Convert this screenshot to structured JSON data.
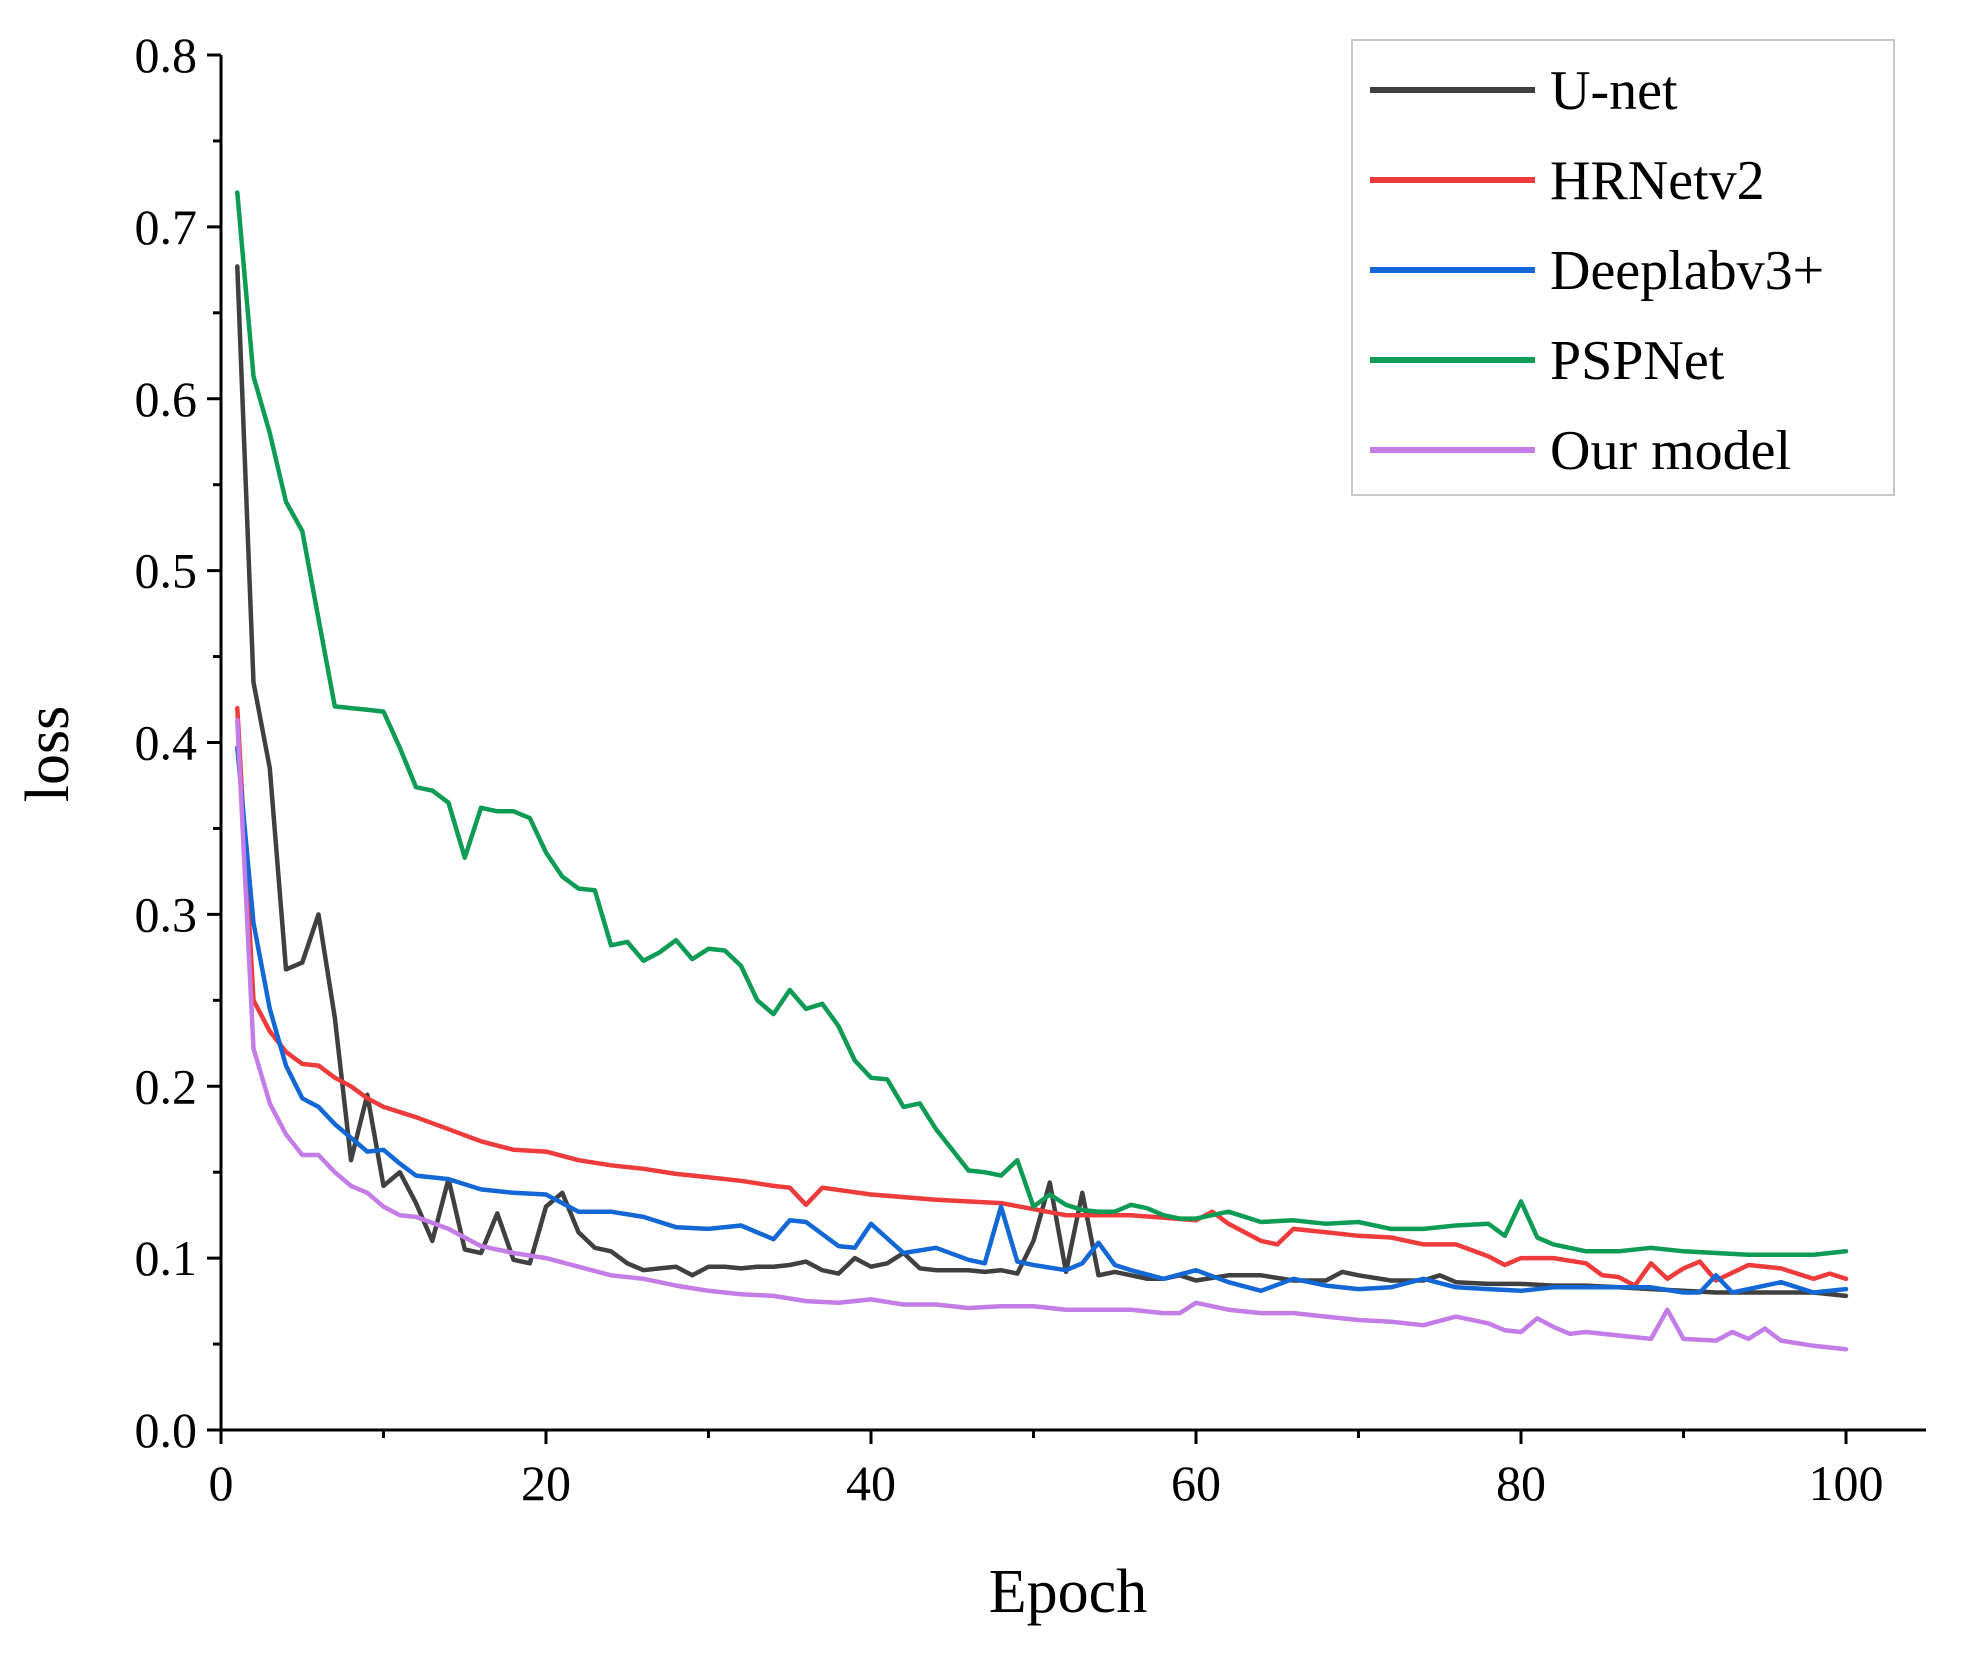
{
  "chart_data": {
    "type": "line",
    "title": "",
    "xlabel": "Epoch",
    "ylabel": "loss",
    "xlim": [
      0,
      105
    ],
    "ylim": [
      0,
      0.8
    ],
    "xticks": [
      0,
      20,
      40,
      60,
      80,
      100
    ],
    "yticks": [
      0.0,
      0.1,
      0.2,
      0.3,
      0.4,
      0.5,
      0.6,
      0.7,
      0.8
    ],
    "xtick_labels": [
      "0",
      "20",
      "40",
      "60",
      "80",
      "100"
    ],
    "ytick_labels": [
      "0.0",
      "0.1",
      "0.2",
      "0.3",
      "0.4",
      "0.5",
      "0.6",
      "0.7",
      "0.8"
    ],
    "grid": false,
    "legend_position": "top-right",
    "series": [
      {
        "name": "U-net",
        "color": "#404040",
        "x": [
          1,
          2,
          3,
          4,
          5,
          6,
          7,
          8,
          9,
          10,
          11,
          12,
          13,
          14,
          15,
          16,
          17,
          18,
          19,
          20,
          21,
          22,
          23,
          24,
          25,
          26,
          27,
          28,
          29,
          30,
          31,
          32,
          33,
          34,
          35,
          36,
          37,
          38,
          39,
          40,
          41,
          42,
          43,
          44,
          45,
          46,
          47,
          48,
          49,
          50,
          51,
          52,
          53,
          54,
          55,
          56,
          57,
          58,
          59,
          60,
          62,
          64,
          66,
          68,
          69,
          70,
          72,
          74,
          75,
          76,
          78,
          80,
          82,
          84,
          86,
          88,
          90,
          92,
          94,
          96,
          98,
          100
        ],
        "values": [
          0.677,
          0.435,
          0.385,
          0.268,
          0.272,
          0.3,
          0.24,
          0.157,
          0.195,
          0.142,
          0.15,
          0.132,
          0.11,
          0.146,
          0.105,
          0.103,
          0.126,
          0.099,
          0.097,
          0.13,
          0.138,
          0.115,
          0.106,
          0.104,
          0.097,
          0.093,
          0.094,
          0.095,
          0.09,
          0.095,
          0.095,
          0.094,
          0.095,
          0.095,
          0.096,
          0.098,
          0.093,
          0.091,
          0.1,
          0.095,
          0.097,
          0.103,
          0.094,
          0.093,
          0.093,
          0.093,
          0.092,
          0.093,
          0.091,
          0.11,
          0.144,
          0.092,
          0.138,
          0.09,
          0.092,
          0.09,
          0.088,
          0.088,
          0.09,
          0.087,
          0.09,
          0.09,
          0.087,
          0.087,
          0.092,
          0.09,
          0.087,
          0.087,
          0.09,
          0.086,
          0.085,
          0.085,
          0.084,
          0.084,
          0.083,
          0.082,
          0.081,
          0.08,
          0.08,
          0.08,
          0.08,
          0.078
        ]
      },
      {
        "name": "HRNetv2",
        "color": "#ee3b3b",
        "x": [
          1,
          2,
          3,
          4,
          5,
          6,
          7,
          8,
          9,
          10,
          12,
          14,
          16,
          18,
          20,
          22,
          24,
          26,
          28,
          30,
          32,
          34,
          35,
          36,
          37,
          40,
          44,
          48,
          52,
          56,
          60,
          61,
          62,
          64,
          65,
          66,
          68,
          70,
          72,
          74,
          76,
          78,
          79,
          80,
          82,
          84,
          85,
          86,
          87,
          88,
          89,
          90,
          91,
          92,
          94,
          96,
          98,
          99,
          100
        ],
        "values": [
          0.42,
          0.25,
          0.232,
          0.22,
          0.213,
          0.212,
          0.205,
          0.2,
          0.193,
          0.188,
          0.182,
          0.175,
          0.168,
          0.163,
          0.162,
          0.157,
          0.154,
          0.152,
          0.149,
          0.147,
          0.145,
          0.142,
          0.141,
          0.131,
          0.141,
          0.137,
          0.134,
          0.132,
          0.125,
          0.125,
          0.122,
          0.127,
          0.12,
          0.11,
          0.108,
          0.117,
          0.115,
          0.113,
          0.112,
          0.108,
          0.108,
          0.101,
          0.096,
          0.1,
          0.1,
          0.097,
          0.09,
          0.089,
          0.084,
          0.097,
          0.088,
          0.094,
          0.098,
          0.087,
          0.096,
          0.094,
          0.088,
          0.091,
          0.088
        ]
      },
      {
        "name": "Deeplabv3+",
        "color": "#1368d6",
        "x": [
          1,
          2,
          3,
          4,
          5,
          6,
          7,
          8,
          9,
          10,
          11,
          12,
          14,
          16,
          18,
          20,
          22,
          24,
          26,
          28,
          30,
          32,
          34,
          35,
          36,
          38,
          39,
          40,
          42,
          44,
          46,
          47,
          48,
          49,
          50,
          52,
          53,
          54,
          55,
          56,
          58,
          60,
          62,
          64,
          66,
          68,
          70,
          72,
          74,
          76,
          78,
          80,
          82,
          84,
          86,
          88,
          90,
          91,
          92,
          93,
          94,
          96,
          98,
          100
        ],
        "values": [
          0.397,
          0.295,
          0.245,
          0.212,
          0.193,
          0.188,
          0.178,
          0.17,
          0.162,
          0.163,
          0.155,
          0.148,
          0.146,
          0.14,
          0.138,
          0.137,
          0.127,
          0.127,
          0.124,
          0.118,
          0.117,
          0.119,
          0.111,
          0.122,
          0.121,
          0.107,
          0.106,
          0.12,
          0.103,
          0.106,
          0.099,
          0.097,
          0.13,
          0.098,
          0.096,
          0.093,
          0.097,
          0.109,
          0.096,
          0.093,
          0.088,
          0.093,
          0.086,
          0.081,
          0.088,
          0.084,
          0.082,
          0.083,
          0.088,
          0.083,
          0.082,
          0.081,
          0.083,
          0.083,
          0.083,
          0.083,
          0.08,
          0.08,
          0.09,
          0.08,
          0.082,
          0.086,
          0.08,
          0.082
        ]
      },
      {
        "name": "PSPNet",
        "color": "#0d9b55",
        "x": [
          1,
          2,
          3,
          4,
          5,
          6,
          7,
          8,
          9,
          10,
          11,
          12,
          13,
          14,
          15,
          16,
          17,
          18,
          19,
          20,
          21,
          22,
          23,
          24,
          25,
          26,
          27,
          28,
          29,
          30,
          31,
          32,
          33,
          34,
          35,
          36,
          37,
          38,
          39,
          40,
          41,
          42,
          43,
          44,
          45,
          46,
          47,
          48,
          49,
          50,
          51,
          52,
          53,
          54,
          55,
          56,
          57,
          58,
          59,
          60,
          62,
          64,
          66,
          68,
          70,
          72,
          74,
          76,
          78,
          79,
          80,
          81,
          82,
          84,
          86,
          88,
          90,
          92,
          94,
          96,
          98,
          100
        ],
        "values": [
          0.72,
          0.613,
          0.58,
          0.54,
          0.523,
          0.472,
          0.421,
          0.42,
          0.419,
          0.418,
          0.397,
          0.374,
          0.372,
          0.365,
          0.333,
          0.362,
          0.36,
          0.36,
          0.356,
          0.336,
          0.322,
          0.315,
          0.314,
          0.282,
          0.284,
          0.273,
          0.278,
          0.285,
          0.274,
          0.28,
          0.279,
          0.27,
          0.25,
          0.242,
          0.256,
          0.245,
          0.248,
          0.235,
          0.215,
          0.205,
          0.204,
          0.188,
          0.19,
          0.175,
          0.163,
          0.151,
          0.15,
          0.148,
          0.157,
          0.13,
          0.137,
          0.131,
          0.128,
          0.127,
          0.127,
          0.131,
          0.129,
          0.125,
          0.123,
          0.123,
          0.127,
          0.121,
          0.122,
          0.12,
          0.121,
          0.117,
          0.117,
          0.119,
          0.12,
          0.113,
          0.133,
          0.112,
          0.108,
          0.104,
          0.104,
          0.106,
          0.104,
          0.103,
          0.102,
          0.102,
          0.102,
          0.104
        ]
      },
      {
        "name": "Our model",
        "color": "#c47de6",
        "x": [
          1,
          2,
          3,
          4,
          5,
          6,
          7,
          8,
          9,
          10,
          11,
          12,
          14,
          16,
          18,
          20,
          22,
          24,
          26,
          28,
          30,
          32,
          34,
          36,
          38,
          40,
          42,
          44,
          46,
          48,
          50,
          52,
          54,
          56,
          58,
          59,
          60,
          62,
          64,
          66,
          68,
          70,
          72,
          74,
          76,
          78,
          79,
          80,
          81,
          82,
          83,
          84,
          86,
          88,
          89,
          90,
          92,
          93,
          94,
          95,
          96,
          98,
          100
        ],
        "values": [
          0.413,
          0.222,
          0.19,
          0.172,
          0.16,
          0.16,
          0.15,
          0.142,
          0.138,
          0.13,
          0.125,
          0.124,
          0.117,
          0.107,
          0.103,
          0.1,
          0.095,
          0.09,
          0.088,
          0.084,
          0.081,
          0.079,
          0.078,
          0.075,
          0.074,
          0.076,
          0.073,
          0.073,
          0.071,
          0.072,
          0.072,
          0.07,
          0.07,
          0.07,
          0.068,
          0.068,
          0.074,
          0.07,
          0.068,
          0.068,
          0.066,
          0.064,
          0.063,
          0.061,
          0.066,
          0.062,
          0.058,
          0.057,
          0.065,
          0.06,
          0.056,
          0.057,
          0.055,
          0.053,
          0.07,
          0.053,
          0.052,
          0.057,
          0.053,
          0.059,
          0.052,
          0.049,
          0.047
        ]
      }
    ]
  }
}
